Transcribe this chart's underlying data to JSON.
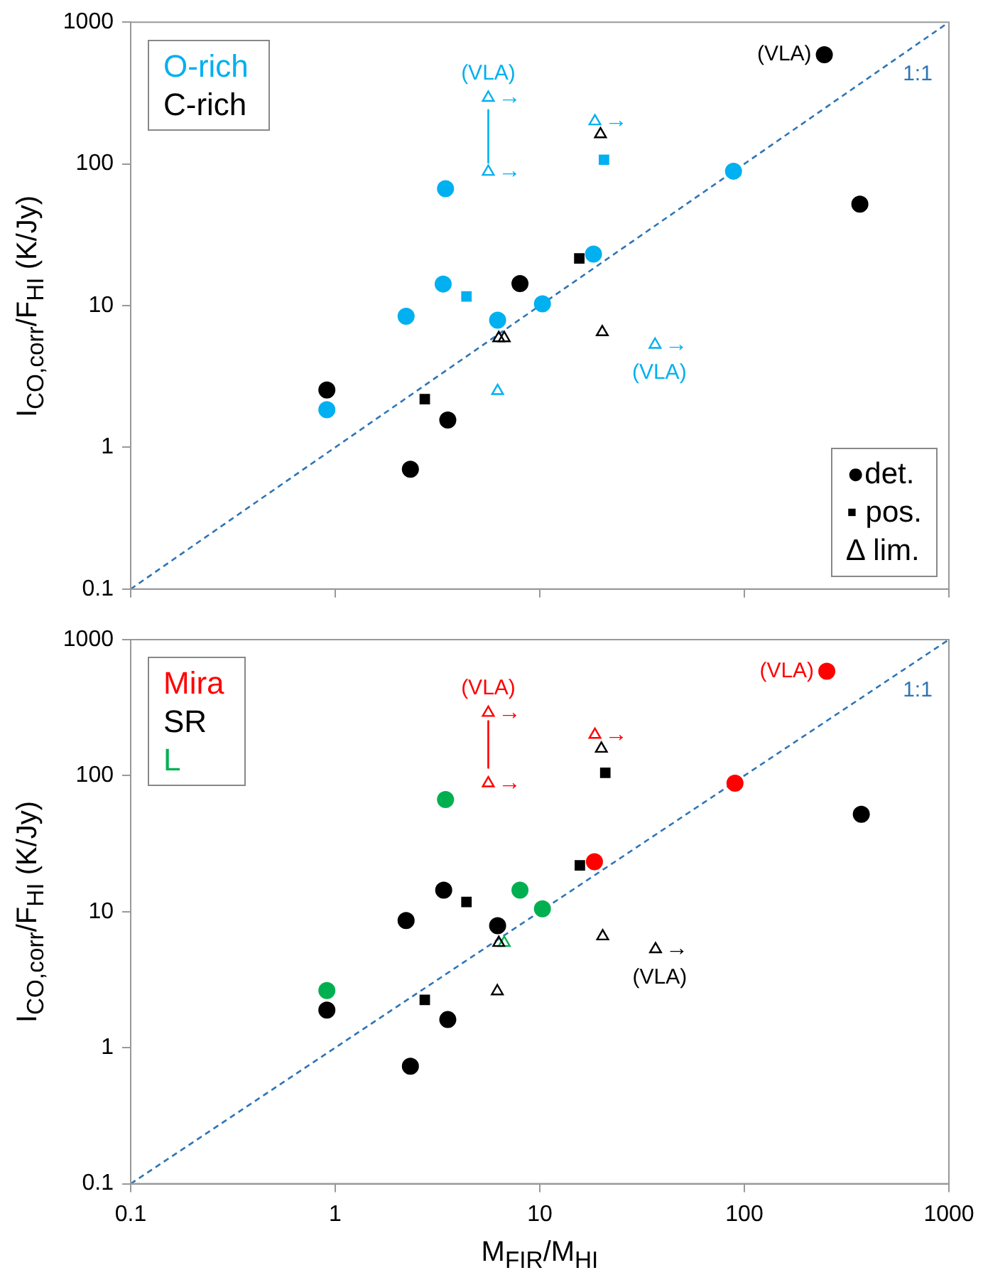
{
  "chart_data": [
    {
      "type": "scatter",
      "ylabel": "I$_{CO,corr}$/F$_{HI}$  (K/Jy)",
      "log": "xy",
      "xlim": [
        0.1,
        1000
      ],
      "ylim": [
        0.1,
        1000
      ],
      "xticks": [
        0.1,
        1,
        10,
        100,
        1000
      ],
      "yticks": [
        0.1,
        1,
        10,
        100,
        1000
      ],
      "tick_labels": "y",
      "legend": "top left",
      "series": [
        {
          "name": "O-rich",
          "color": "#00b0f0",
          "marker": "circle",
          "x": [
            3.46,
            3.37,
            2.22,
            6.22,
            10.3,
            0.91,
            18.3,
            88.5
          ],
          "values": [
            66.8,
            14.2,
            8.4,
            7.9,
            10.3,
            1.84,
            23.1,
            88.8
          ]
        },
        {
          "name": "C-rich",
          "color": "#000000",
          "marker": "circle",
          "x": [
            0.91,
            3.55,
            2.33,
            8.0,
            246,
            367
          ],
          "values": [
            2.54,
            1.56,
            0.7,
            14.3,
            589,
            52
          ]
        },
        {
          "color": "#00b0f0",
          "marker": "square",
          "x": [
            4.38,
            20.6
          ],
          "values": [
            11.6,
            107
          ]
        },
        {
          "color": "#000000",
          "marker": "square",
          "x": [
            2.74,
            15.6
          ],
          "values": [
            2.19,
            21.5
          ]
        },
        {
          "color": "#00b0f0",
          "marker": "triangle",
          "x": [
            5.6,
            5.6,
            18.6,
            36.6,
            6.22
          ],
          "values": [
            293,
            88,
            200,
            5.3,
            2.5
          ]
        },
        {
          "color": "#000000",
          "marker": "triangle",
          "x": [
            6.3,
            6.7,
            19.8,
            20.2
          ],
          "values": [
            5.9,
            5.9,
            162,
            6.5
          ]
        },
        {
          "type": "line",
          "color": "#00b0f0",
          "marker": "none",
          "x": [
            5.6,
            5.6
          ],
          "values": [
            240,
            102
          ]
        },
        {
          "type": "line",
          "name": "1:1",
          "color": "#2e75b6",
          "marker": "none",
          "line_style": "dashed",
          "x": [
            0.1,
            1000
          ],
          "values": [
            0.1,
            1000
          ]
        }
      ],
      "annotations": [
        "●det.",
        "▪ pos.",
        "∆ lim.",
        {
          "text": "(VLA)",
          "x": 5.6,
          "y": 293
        },
        {
          "text": "→",
          "x": 5.6,
          "y": 293
        },
        {
          "text": "→",
          "x": 5.6,
          "y": 88
        },
        {
          "text": "→",
          "x": 18.6,
          "y": 200
        },
        {
          "text": "→",
          "x": 36.6,
          "y": 5.3
        },
        {
          "text": "(VLA)",
          "x": 36.6,
          "y": 5.3
        },
        {
          "text": "(VLA)",
          "x": 246,
          "y": 589
        }
      ]
    },
    {
      "type": "scatter",
      "xlabel": "M$_{FIR}$/M$_{HI}$",
      "ylabel": "I$_{CO,corr}$/F$_{HI}$  (K/Jy)",
      "log": "xy",
      "xlim": [
        0.1,
        1000
      ],
      "ylim": [
        0.1,
        1000
      ],
      "xticks": [
        0.1,
        1,
        10,
        100,
        1000
      ],
      "yticks": [
        0.1,
        1,
        10,
        100,
        1000
      ],
      "legend": "top left",
      "series": [
        {
          "name": "Mira",
          "color": "#ff0000",
          "marker": "circle",
          "x": [
            18.5,
            90,
            253
          ],
          "values": [
            23.3,
            88,
            585
          ]
        },
        {
          "name": "SR",
          "color": "#000000",
          "marker": "circle",
          "x": [
            3.39,
            2.22,
            6.22,
            0.91,
            3.55,
            2.33,
            373
          ],
          "values": [
            14.4,
            8.6,
            7.9,
            1.89,
            1.61,
            0.73,
            52
          ]
        },
        {
          "name": "L",
          "color": "#00b050",
          "marker": "circle",
          "x": [
            3.46,
            8.0,
            10.3,
            0.91
          ],
          "values": [
            66.8,
            14.4,
            10.5,
            2.63
          ]
        },
        {
          "color": "#000000",
          "marker": "square",
          "x": [
            2.74,
            4.38,
            15.7,
            20.9
          ],
          "values": [
            2.25,
            11.8,
            21.9,
            105
          ]
        },
        {
          "color": "#ff0000",
          "marker": "triangle",
          "x": [
            5.6,
            5.6,
            18.6
          ],
          "values": [
            290,
            88,
            200
          ]
        },
        {
          "color": "#000000",
          "marker": "triangle",
          "x": [
            6.3,
            20,
            20.3,
            36.8,
            6.2
          ],
          "values": [
            5.9,
            158,
            6.6,
            5.3,
            2.6
          ]
        },
        {
          "color": "#00b050",
          "marker": "triangle",
          "x": [
            6.7
          ],
          "values": [
            5.9
          ]
        },
        {
          "type": "line",
          "color": "#ff0000",
          "marker": "none",
          "x": [
            5.6,
            5.6
          ],
          "values": [
            252,
            114
          ]
        },
        {
          "type": "line",
          "name": "1:1",
          "color": "#2e75b6",
          "marker": "none",
          "line_style": "dashed",
          "x": [
            0.1,
            1000
          ],
          "values": [
            0.1,
            1000
          ]
        }
      ],
      "annotations": [
        {
          "text": "(VLA)",
          "x": 5.6,
          "y": 290
        },
        {
          "text": "→",
          "x": 5.6,
          "y": 290
        },
        {
          "text": "→",
          "x": 5.6,
          "y": 88
        },
        {
          "text": "→",
          "x": 18.6,
          "y": 200
        },
        {
          "text": "(VLA)",
          "x": 253,
          "y": 585
        },
        {
          "text": "→",
          "x": 36.8,
          "y": 5.3
        },
        {
          "text": "(VLA)",
          "x": 36.8,
          "y": 5.3
        }
      ]
    }
  ]
}
